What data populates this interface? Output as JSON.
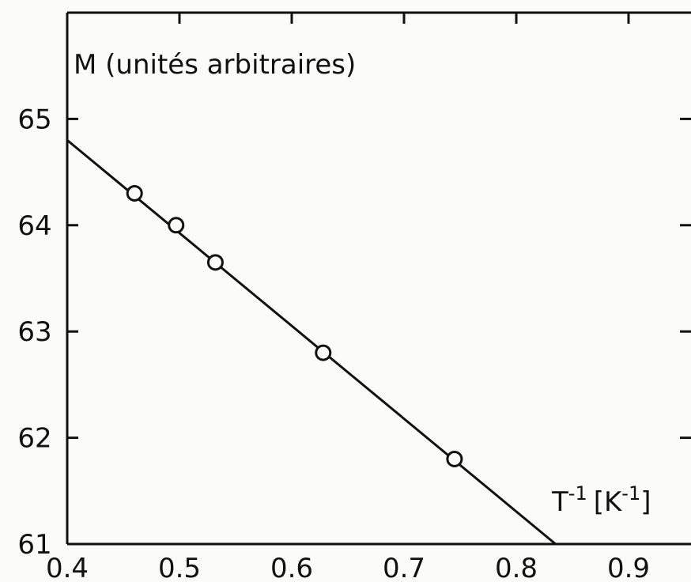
{
  "chart_data": {
    "type": "scatter",
    "title": "",
    "ylabel": "M (unités arbitraires)",
    "xlabel_main": "T",
    "xlabel_exp": "-1",
    "xlabel_unit_open": "[K",
    "xlabel_unit_exp": "-1",
    "xlabel_unit_close": "]",
    "xlim": [
      0.4,
      1.0
    ],
    "ylim": [
      61,
      66
    ],
    "grid": false,
    "x_ticks": [
      0.4,
      0.5,
      0.6,
      0.7,
      0.8,
      0.9
    ],
    "x_tick_labels": [
      "0.4",
      "0.5",
      "0.6",
      "0.7",
      "0.8",
      "0.9"
    ],
    "y_ticks": [
      61,
      62,
      63,
      64,
      65
    ],
    "y_tick_labels": [
      "61",
      "62",
      "63",
      "64",
      "65"
    ],
    "points": [
      {
        "x": 0.46,
        "y": 64.3
      },
      {
        "x": 0.497,
        "y": 64.0
      },
      {
        "x": 0.532,
        "y": 63.65
      },
      {
        "x": 0.628,
        "y": 62.8
      },
      {
        "x": 0.745,
        "y": 61.8
      }
    ],
    "fit_line": {
      "x": [
        0.4,
        0.835
      ],
      "y": [
        64.8,
        61.0
      ]
    }
  }
}
